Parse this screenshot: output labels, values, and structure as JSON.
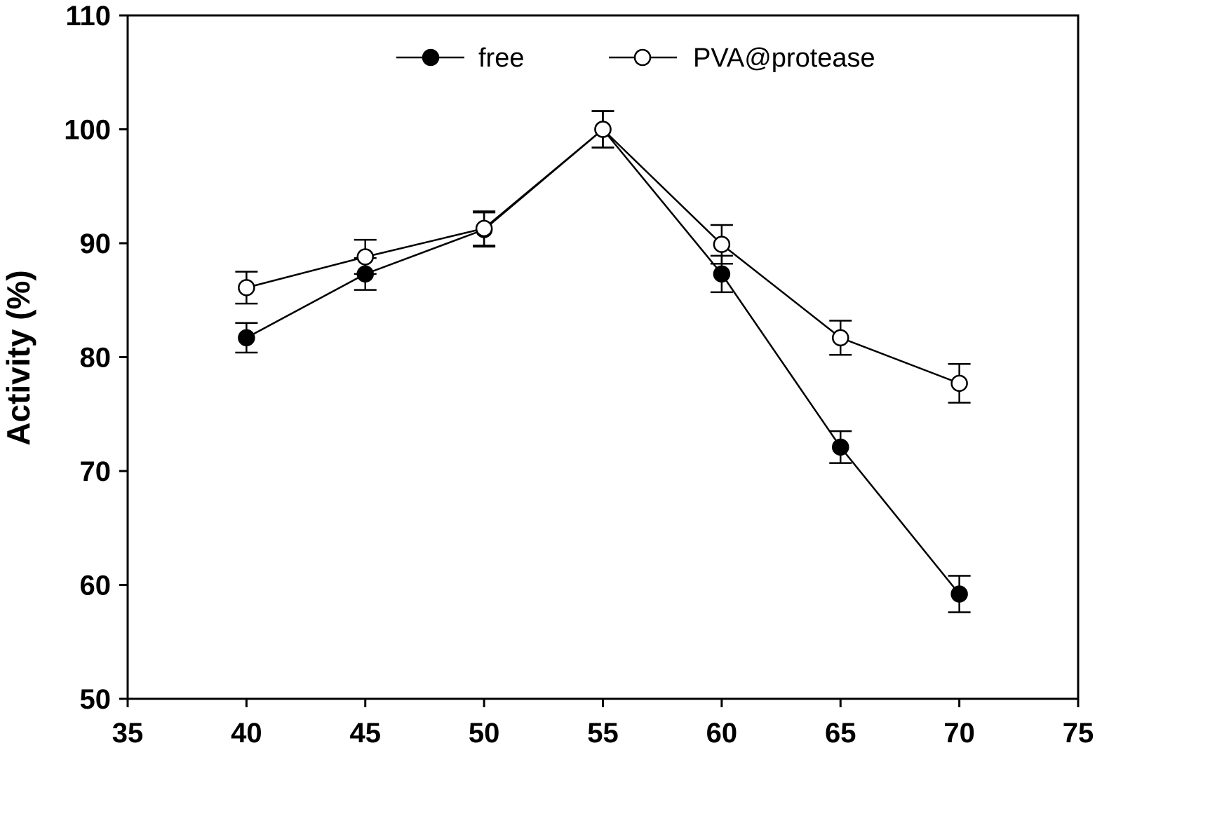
{
  "chart_data": {
    "type": "line",
    "title": "",
    "xlabel": "",
    "ylabel": "Activity (%)",
    "xlim": [
      35,
      75
    ],
    "ylim": [
      50,
      110
    ],
    "xticks": [
      35,
      40,
      45,
      50,
      55,
      60,
      65,
      70,
      75
    ],
    "yticks": [
      50,
      60,
      70,
      80,
      90,
      100,
      110
    ],
    "grid": false,
    "legend_position": "top",
    "x": [
      40,
      45,
      50,
      55,
      60,
      65,
      70
    ],
    "series": [
      {
        "name": "free",
        "marker": "filled-circle",
        "color": "#000000",
        "values": [
          81.7,
          87.3,
          91.2,
          100.0,
          87.3,
          72.1,
          59.2
        ],
        "errors": [
          1.3,
          1.4,
          1.5,
          1.6,
          1.6,
          1.4,
          1.6
        ]
      },
      {
        "name": "PVA@protease",
        "marker": "open-circle",
        "color": "#000000",
        "values": [
          86.1,
          88.8,
          91.3,
          100.0,
          89.9,
          81.7,
          77.7
        ],
        "errors": [
          1.4,
          1.5,
          1.5,
          1.6,
          1.7,
          1.5,
          1.7
        ]
      }
    ]
  }
}
